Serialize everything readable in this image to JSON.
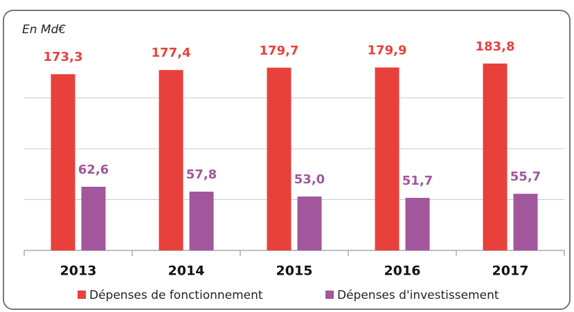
{
  "chart_data": {
    "type": "bar",
    "subtitle": "En Md€",
    "categories": [
      "2013",
      "2014",
      "2015",
      "2016",
      "2017"
    ],
    "series": [
      {
        "name": "Dépenses de fonctionnement",
        "color": "#e8413c",
        "values": [
          173.3,
          177.4,
          179.7,
          179.9,
          183.8
        ],
        "value_labels": [
          "173,3",
          "177,4",
          "179,7",
          "179,9",
          "183,8"
        ]
      },
      {
        "name": "Dépenses d'investissement",
        "color": "#a2569b",
        "values": [
          62.6,
          57.8,
          53.0,
          51.7,
          55.7
        ],
        "value_labels": [
          "62,6",
          "57,8",
          "53,0",
          "51,7",
          "55,7"
        ]
      }
    ],
    "ylim": [
      0,
      200
    ],
    "yticks": [
      50,
      100,
      150
    ],
    "grid": true,
    "legend": "bottom"
  }
}
